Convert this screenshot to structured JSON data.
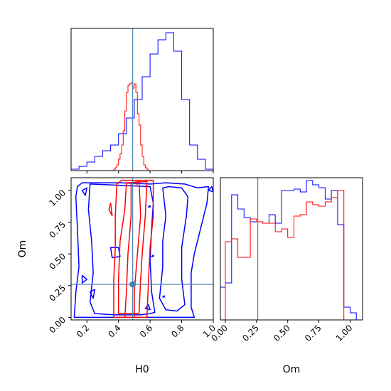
{
  "chart_data": {
    "type": "corner",
    "parameters": [
      "H0",
      "Om"
    ],
    "truth": {
      "H0": 0.49,
      "Om": 0.26
    },
    "colors": {
      "blue": "#0000ff",
      "red": "#ff0000",
      "truth": "#4682b4"
    },
    "panels": {
      "h0_hist": {
        "type": "step-histogram",
        "xlim": [
          0.1,
          1.0
        ],
        "ylim": [
          0,
          1
        ],
        "blue": {
          "edges": [
            0.1,
            0.15,
            0.2,
            0.25,
            0.3,
            0.35,
            0.4,
            0.45,
            0.5,
            0.55,
            0.6,
            0.65,
            0.7,
            0.75,
            0.8,
            0.85,
            0.9,
            0.95,
            1.0
          ],
          "values": [
            0.01,
            0.03,
            0.06,
            0.1,
            0.14,
            0.18,
            0.26,
            0.37,
            0.5,
            0.66,
            0.82,
            0.92,
            0.97,
            0.84,
            0.5,
            0.18,
            0.08,
            0.01
          ]
        },
        "red": {
          "edges": [
            0.37,
            0.38,
            0.39,
            0.4,
            0.41,
            0.42,
            0.43,
            0.44,
            0.45,
            0.46,
            0.47,
            0.48,
            0.49,
            0.5,
            0.51,
            0.52,
            0.53,
            0.54,
            0.55,
            0.56,
            0.57,
            0.58,
            0.59,
            0.6
          ],
          "values": [
            0.01,
            0.02,
            0.04,
            0.08,
            0.12,
            0.18,
            0.28,
            0.42,
            0.55,
            0.6,
            0.61,
            0.62,
            0.58,
            0.61,
            0.55,
            0.4,
            0.32,
            0.18,
            0.1,
            0.04,
            0.02,
            0.01,
            0.0
          ]
        }
      },
      "om_hist": {
        "type": "step-histogram",
        "xlim": [
          -0.04,
          1.1
        ],
        "ylim": [
          0,
          1
        ],
        "xticks": [
          "0.00",
          "0.25",
          "0.50",
          "0.75",
          "1.00"
        ],
        "xlabel": "Om",
        "blue": {
          "edges": [
            -0.04,
            0.0,
            0.05,
            0.1,
            0.15,
            0.2,
            0.25,
            0.3,
            0.35,
            0.4,
            0.45,
            0.5,
            0.55,
            0.6,
            0.65,
            0.7,
            0.75,
            0.8,
            0.85,
            0.9,
            0.95,
            1.0,
            1.05,
            1.1
          ],
          "values": [
            0.23,
            0.26,
            0.88,
            0.78,
            0.72,
            0.69,
            0.69,
            0.68,
            0.74,
            0.68,
            0.91,
            0.91,
            0.92,
            0.9,
            0.98,
            0.95,
            0.93,
            0.85,
            0.91,
            0.67,
            0.09,
            0.05,
            0.0
          ]
        },
        "red": {
          "edges": [
            -0.04,
            0.0,
            0.05,
            0.1,
            0.15,
            0.2,
            0.25,
            0.3,
            0.35,
            0.4,
            0.45,
            0.5,
            0.55,
            0.6,
            0.65,
            0.7,
            0.75,
            0.8,
            0.85,
            0.9,
            0.95,
            1.0
          ],
          "values": [
            0.0,
            0.55,
            0.57,
            0.44,
            0.44,
            0.71,
            0.69,
            0.68,
            0.68,
            0.62,
            0.64,
            0.58,
            0.73,
            0.74,
            0.83,
            0.81,
            0.8,
            0.83,
            0.86,
            0.91,
            0.0
          ]
        }
      },
      "joint": {
        "type": "contour",
        "xlim": [
          0.1,
          1.0
        ],
        "ylim": [
          -0.02,
          1.1
        ],
        "xticks": [
          "0.2",
          "0.4",
          "0.6",
          "0.8",
          "1.0"
        ],
        "yticks": [
          "0.00",
          "0.25",
          "0.50",
          "0.75",
          "1.00"
        ],
        "xlabel": "H0",
        "ylabel": "Om",
        "blue_contours": [
          [
            [
              0.14,
              1.03
            ],
            [
              0.17,
              1.06
            ],
            [
              0.3,
              1.06
            ],
            [
              0.42,
              1.06
            ],
            [
              0.6,
              1.05
            ],
            [
              0.7,
              1.06
            ],
            [
              0.82,
              1.05
            ],
            [
              0.9,
              1.02
            ],
            [
              0.97,
              1.03
            ],
            [
              0.96,
              0.9
            ],
            [
              0.92,
              0.7
            ],
            [
              0.88,
              0.5
            ],
            [
              0.86,
              0.35
            ],
            [
              0.86,
              0.08
            ],
            [
              0.88,
              0.0
            ],
            [
              0.12,
              0.0
            ],
            [
              0.13,
              0.2
            ],
            [
              0.15,
              0.4
            ],
            [
              0.14,
              0.7
            ],
            [
              0.13,
              0.95
            ],
            [
              0.14,
              1.03
            ]
          ],
          [
            [
              0.22,
              1.05
            ],
            [
              0.21,
              0.85
            ],
            [
              0.23,
              0.6
            ],
            [
              0.24,
              0.35
            ],
            [
              0.22,
              0.12
            ],
            [
              0.25,
              0.03
            ],
            [
              0.38,
              0.02
            ],
            [
              0.54,
              0.02
            ],
            [
              0.6,
              0.03
            ],
            [
              0.63,
              0.04
            ],
            [
              0.61,
              0.2
            ],
            [
              0.6,
              0.45
            ],
            [
              0.61,
              0.7
            ],
            [
              0.62,
              0.9
            ],
            [
              0.6,
              1.03
            ],
            [
              0.22,
              1.05
            ]
          ],
          [
            [
              0.68,
              1.02
            ],
            [
              0.7,
              0.8
            ],
            [
              0.68,
              0.6
            ],
            [
              0.68,
              0.4
            ],
            [
              0.66,
              0.15
            ],
            [
              0.7,
              0.06
            ],
            [
              0.77,
              0.05
            ],
            [
              0.82,
              0.1
            ],
            [
              0.8,
              0.3
            ],
            [
              0.8,
              0.55
            ],
            [
              0.83,
              0.8
            ],
            [
              0.84,
              0.95
            ],
            [
              0.8,
              1.02
            ],
            [
              0.72,
              1.03
            ],
            [
              0.68,
              1.02
            ]
          ],
          [
            [
              0.35,
              0.55
            ],
            [
              0.4,
              0.55
            ],
            [
              0.41,
              0.48
            ],
            [
              0.36,
              0.47
            ],
            [
              0.35,
              0.55
            ]
          ],
          [
            [
              0.17,
              1.0
            ],
            [
              0.2,
              1.02
            ],
            [
              0.19,
              0.96
            ],
            [
              0.17,
              1.0
            ]
          ],
          [
            [
              0.17,
              0.33
            ],
            [
              0.2,
              0.3
            ],
            [
              0.17,
              0.27
            ],
            [
              0.17,
              0.33
            ]
          ],
          [
            [
              0.22,
              0.2
            ],
            [
              0.25,
              0.22
            ],
            [
              0.24,
              0.15
            ],
            [
              0.22,
              0.2
            ]
          ],
          [
            [
              0.57,
              0.07
            ],
            [
              0.59,
              0.1
            ],
            [
              0.6,
              0.06
            ],
            [
              0.57,
              0.07
            ]
          ],
          [
            [
              0.68,
              0.16
            ],
            [
              0.69,
              0.17
            ],
            [
              0.69,
              0.16
            ],
            [
              0.68,
              0.16
            ]
          ],
          [
            [
              0.61,
              0.48
            ],
            [
              0.62,
              0.49
            ],
            [
              0.62,
              0.48
            ],
            [
              0.61,
              0.48
            ]
          ],
          [
            [
              0.59,
              0.87
            ],
            [
              0.6,
              0.88
            ],
            [
              0.6,
              0.87
            ],
            [
              0.59,
              0.87
            ]
          ],
          [
            [
              0.97,
              1.0
            ],
            [
              0.99,
              1.03
            ],
            [
              1.0,
              0.99
            ],
            [
              0.97,
              1.0
            ]
          ]
        ],
        "red_contours": [
          [
            [
              0.44,
              0.0
            ],
            [
              0.45,
              0.2
            ],
            [
              0.46,
              0.5
            ],
            [
              0.48,
              0.8
            ],
            [
              0.48,
              1.06
            ],
            [
              0.53,
              1.07
            ],
            [
              0.54,
              0.8
            ],
            [
              0.52,
              0.5
            ],
            [
              0.5,
              0.2
            ],
            [
              0.5,
              0.0
            ],
            [
              0.44,
              0.0
            ]
          ],
          [
            [
              0.4,
              0.03
            ],
            [
              0.4,
              0.3
            ],
            [
              0.41,
              0.6
            ],
            [
              0.44,
              0.85
            ],
            [
              0.45,
              1.06
            ],
            [
              0.58,
              1.07
            ],
            [
              0.57,
              0.8
            ],
            [
              0.55,
              0.5
            ],
            [
              0.54,
              0.3
            ],
            [
              0.53,
              0.03
            ],
            [
              0.4,
              0.03
            ]
          ],
          [
            [
              0.37,
              0.0
            ],
            [
              0.37,
              0.3
            ],
            [
              0.38,
              0.55
            ],
            [
              0.38,
              0.8
            ],
            [
              0.39,
              1.05
            ],
            [
              0.42,
              1.08
            ],
            [
              0.62,
              1.08
            ],
            [
              0.62,
              0.8
            ],
            [
              0.6,
              0.55
            ],
            [
              0.59,
              0.3
            ],
            [
              0.58,
              0.0
            ],
            [
              0.37,
              0.0
            ]
          ],
          [
            [
              0.34,
              0.85
            ],
            [
              0.35,
              0.9
            ],
            [
              0.36,
              0.8
            ],
            [
              0.34,
              0.85
            ]
          ],
          [
            [
              0.51,
              1.05
            ],
            [
              0.52,
              1.06
            ],
            [
              0.52,
              1.05
            ],
            [
              0.51,
              1.05
            ]
          ]
        ]
      }
    }
  }
}
